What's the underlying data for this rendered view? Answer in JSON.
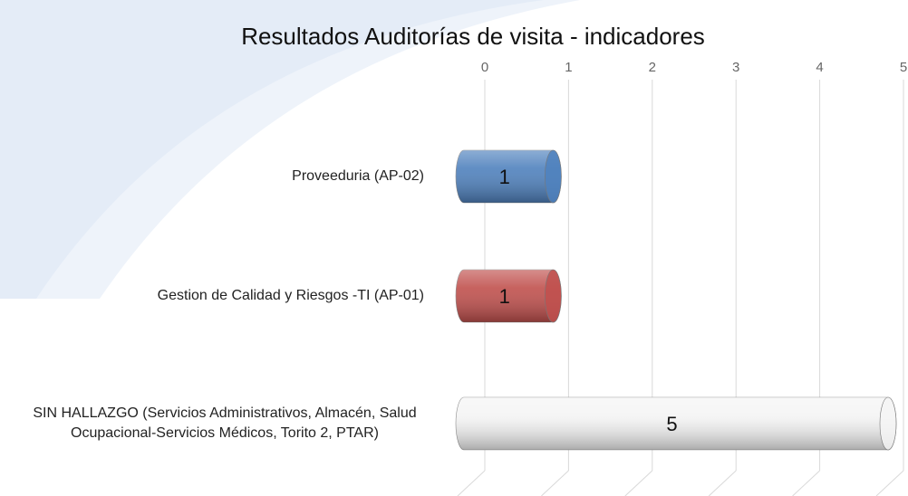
{
  "chart_data": {
    "type": "bar",
    "orientation": "horizontal",
    "style": "3d-cylinder",
    "title": "Resultados Auditorías de visita - indicadores",
    "categories": [
      "Proveeduria (AP-02)",
      "Gestion de Calidad y Riesgos -TI  (AP-01)",
      "SIN HALLAZGO (Servicios Administrativos, Almacén, Salud Ocupacional-Servicios Médicos, Torito 2, PTAR)"
    ],
    "values": [
      1,
      1,
      5
    ],
    "colors": [
      "#4f81bd",
      "#c0504d",
      "#f4f4f4"
    ],
    "xlim": [
      0,
      5
    ],
    "xticks": [
      0,
      1,
      2,
      3,
      4,
      5
    ],
    "grid": true,
    "axis_position": "top"
  }
}
